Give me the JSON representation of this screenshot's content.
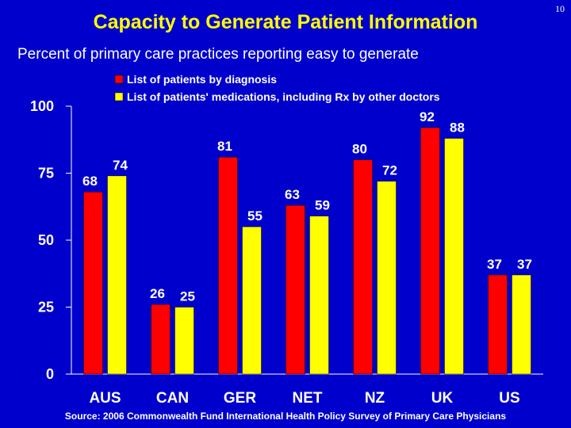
{
  "page_number": "10",
  "colors": {
    "background": "#0000CC",
    "title": "#FFFF00",
    "series1": "#FF0000",
    "series2": "#FFFF00",
    "text": "#FFFFFF"
  },
  "chart_data": {
    "type": "bar",
    "title": "Capacity to Generate Patient Information",
    "subtitle": "Percent of primary care practices reporting easy to generate",
    "categories": [
      "AUS",
      "CAN",
      "GER",
      "NET",
      "NZ",
      "UK",
      "US"
    ],
    "series": [
      {
        "name": "List of patients by diagnosis",
        "values": [
          68,
          26,
          81,
          63,
          80,
          92,
          37
        ]
      },
      {
        "name": "List of patients' medications, including Rx by other doctors",
        "values": [
          74,
          25,
          55,
          59,
          72,
          88,
          37
        ]
      }
    ],
    "ylim": [
      0,
      100
    ],
    "yticks": [
      0,
      25,
      50,
      75,
      100
    ],
    "legend_position": "top-right",
    "source": "Source: 2006 Commonwealth Fund International Health Policy Survey of Primary Care Physicians"
  }
}
